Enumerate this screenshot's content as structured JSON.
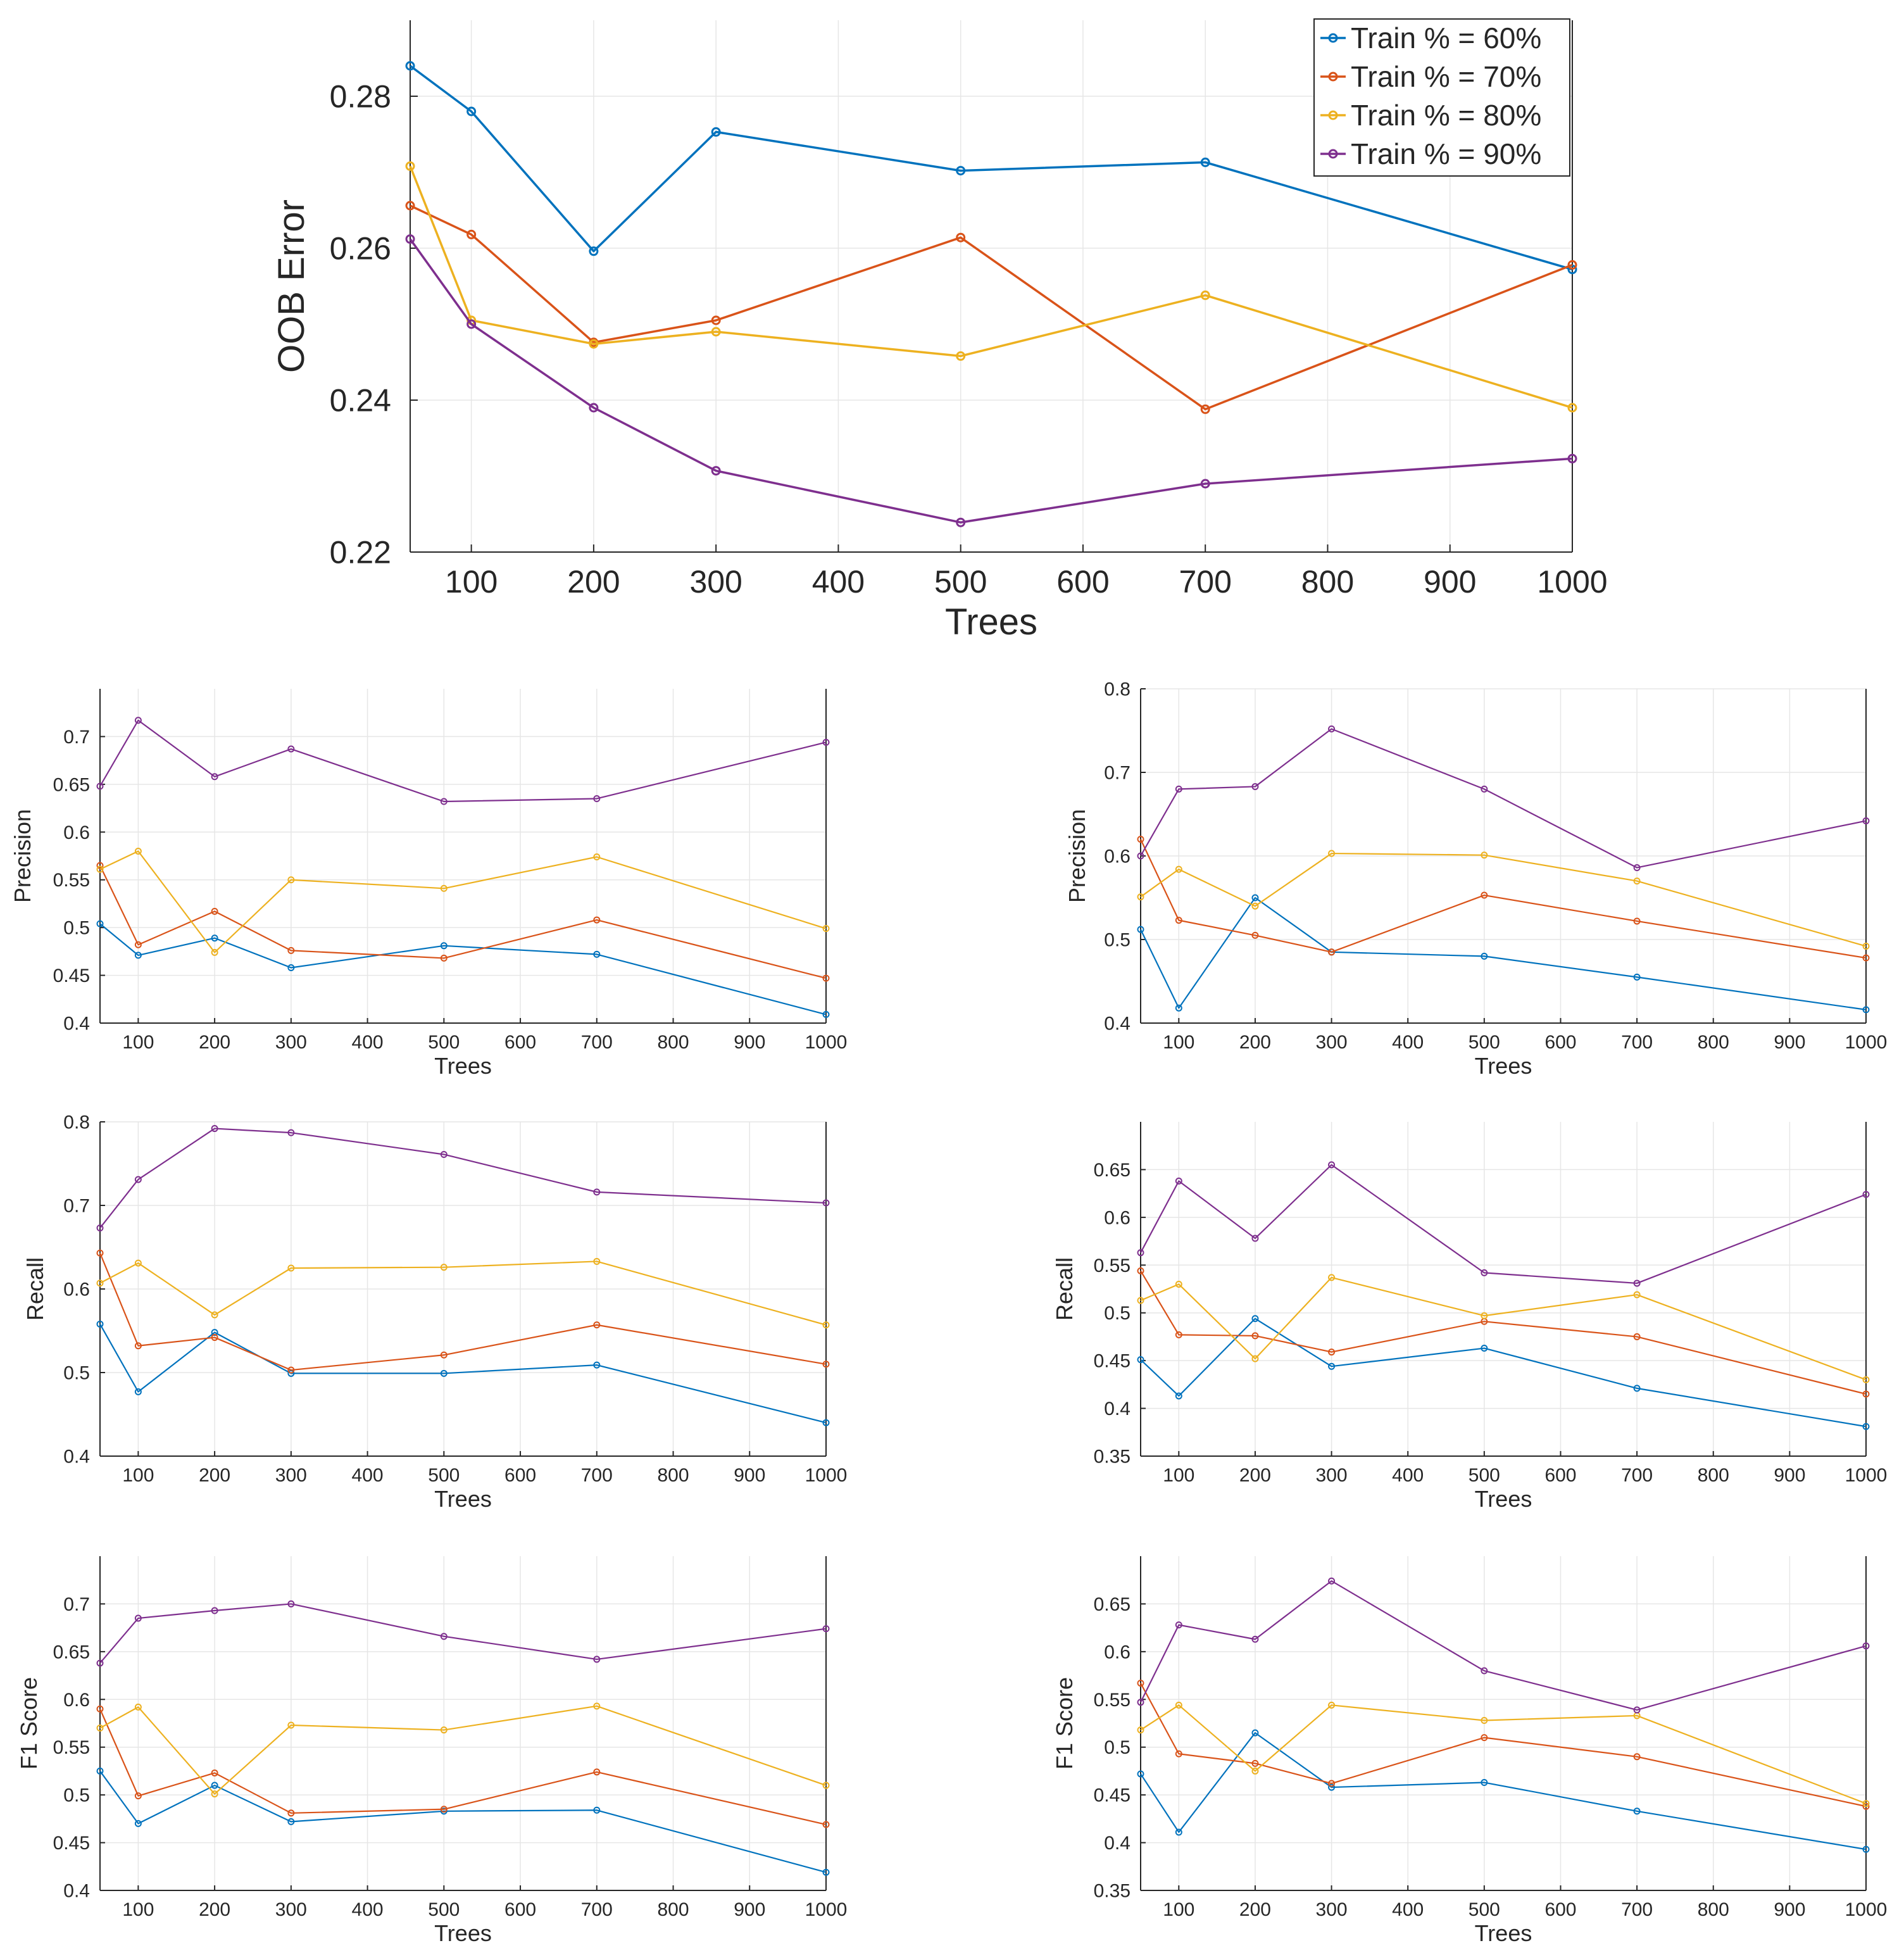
{
  "series_meta": [
    {
      "name": "Train % = 60%",
      "color": "#0072BD"
    },
    {
      "name": "Train % = 70%",
      "color": "#D95319"
    },
    {
      "name": "Train % = 80%",
      "color": "#EDB120"
    },
    {
      "name": "Train % = 90%",
      "color": "#7E2F8E"
    }
  ],
  "chart_data": [
    {
      "id": "oob",
      "type": "line",
      "title": "",
      "xlabel": "Trees",
      "ylabel": "OOB Error",
      "x": [
        50,
        100,
        200,
        300,
        500,
        700,
        1000
      ],
      "xlim": [
        50,
        1000
      ],
      "ylim": [
        0.22,
        0.29
      ],
      "xticks": [
        100,
        200,
        300,
        400,
        500,
        600,
        700,
        800,
        900,
        1000
      ],
      "yticks": [
        0.22,
        0.24,
        0.26,
        0.28
      ],
      "ytick_labels": [
        "0.22",
        "0.24",
        "0.26",
        "0.28"
      ],
      "grid": true,
      "legend": "top-right",
      "series": [
        {
          "name": "Train % = 60%",
          "values": [
            0.284,
            0.278,
            0.2596,
            0.2753,
            0.2702,
            0.2713,
            0.2572
          ]
        },
        {
          "name": "Train % = 70%",
          "values": [
            0.2656,
            0.2618,
            0.2476,
            0.2505,
            0.2614,
            0.2388,
            0.2578
          ]
        },
        {
          "name": "Train % = 80%",
          "values": [
            0.2708,
            0.2505,
            0.2474,
            0.249,
            0.2458,
            0.2538,
            0.239
          ]
        },
        {
          "name": "Train % = 90%",
          "values": [
            0.2612,
            0.25,
            0.239,
            0.2307,
            0.2239,
            0.229,
            0.2323
          ]
        }
      ]
    },
    {
      "id": "precision-left",
      "type": "line",
      "xlabel": "Trees",
      "ylabel": "Precision",
      "x": [
        50,
        100,
        200,
        300,
        500,
        700,
        1000
      ],
      "xlim": [
        50,
        1000
      ],
      "ylim": [
        0.4,
        0.75
      ],
      "xticks": [
        100,
        200,
        300,
        400,
        500,
        600,
        700,
        800,
        900,
        1000
      ],
      "yticks": [
        0.4,
        0.45,
        0.5,
        0.55,
        0.6,
        0.65,
        0.7
      ],
      "ytick_labels": [
        "0.4",
        "0.45",
        "0.5",
        "0.55",
        "0.6",
        "0.65",
        "0.7"
      ],
      "grid": true,
      "series": [
        {
          "name": "Train % = 60%",
          "values": [
            0.504,
            0.471,
            0.489,
            0.458,
            0.481,
            0.472,
            0.409
          ]
        },
        {
          "name": "Train % = 70%",
          "values": [
            0.565,
            0.482,
            0.517,
            0.476,
            0.468,
            0.508,
            0.447
          ]
        },
        {
          "name": "Train % = 80%",
          "values": [
            0.561,
            0.58,
            0.474,
            0.55,
            0.541,
            0.574,
            0.499
          ]
        },
        {
          "name": "Train % = 90%",
          "values": [
            0.648,
            0.717,
            0.658,
            0.687,
            0.632,
            0.635,
            0.694
          ]
        }
      ]
    },
    {
      "id": "precision-right",
      "type": "line",
      "xlabel": "Trees",
      "ylabel": "Precision",
      "x": [
        50,
        100,
        200,
        300,
        500,
        700,
        1000
      ],
      "xlim": [
        50,
        1000
      ],
      "ylim": [
        0.4,
        0.8
      ],
      "xticks": [
        100,
        200,
        300,
        400,
        500,
        600,
        700,
        800,
        900,
        1000
      ],
      "yticks": [
        0.4,
        0.5,
        0.6,
        0.7,
        0.8
      ],
      "ytick_labels": [
        "0.4",
        "0.5",
        "0.6",
        "0.7",
        "0.8"
      ],
      "grid": true,
      "series": [
        {
          "name": "Train % = 60%",
          "values": [
            0.512,
            0.418,
            0.55,
            0.485,
            0.48,
            0.455,
            0.416
          ]
        },
        {
          "name": "Train % = 70%",
          "values": [
            0.62,
            0.523,
            0.505,
            0.485,
            0.553,
            0.522,
            0.478
          ]
        },
        {
          "name": "Train % = 80%",
          "values": [
            0.551,
            0.584,
            0.54,
            0.603,
            0.601,
            0.57,
            0.492
          ]
        },
        {
          "name": "Train % = 90%",
          "values": [
            0.6,
            0.68,
            0.683,
            0.752,
            0.68,
            0.586,
            0.642
          ]
        }
      ]
    },
    {
      "id": "recall-left",
      "type": "line",
      "xlabel": "Trees",
      "ylabel": "Recall",
      "x": [
        50,
        100,
        200,
        300,
        500,
        700,
        1000
      ],
      "xlim": [
        50,
        1000
      ],
      "ylim": [
        0.4,
        0.8
      ],
      "xticks": [
        100,
        200,
        300,
        400,
        500,
        600,
        700,
        800,
        900,
        1000
      ],
      "yticks": [
        0.4,
        0.5,
        0.6,
        0.7,
        0.8
      ],
      "ytick_labels": [
        "0.4",
        "0.5",
        "0.6",
        "0.7",
        "0.8"
      ],
      "grid": true,
      "series": [
        {
          "name": "Train % = 60%",
          "values": [
            0.558,
            0.477,
            0.548,
            0.499,
            0.499,
            0.509,
            0.44
          ]
        },
        {
          "name": "Train % = 70%",
          "values": [
            0.643,
            0.532,
            0.542,
            0.503,
            0.521,
            0.557,
            0.51
          ]
        },
        {
          "name": "Train % = 80%",
          "values": [
            0.607,
            0.631,
            0.569,
            0.625,
            0.626,
            0.633,
            0.557
          ]
        },
        {
          "name": "Train % = 90%",
          "values": [
            0.673,
            0.731,
            0.792,
            0.787,
            0.761,
            0.716,
            0.703
          ]
        }
      ]
    },
    {
      "id": "recall-right",
      "type": "line",
      "xlabel": "Trees",
      "ylabel": "Recall",
      "x": [
        50,
        100,
        200,
        300,
        500,
        700,
        1000
      ],
      "xlim": [
        50,
        1000
      ],
      "ylim": [
        0.35,
        0.7
      ],
      "xticks": [
        100,
        200,
        300,
        400,
        500,
        600,
        700,
        800,
        900,
        1000
      ],
      "yticks": [
        0.35,
        0.4,
        0.45,
        0.5,
        0.55,
        0.6,
        0.65
      ],
      "ytick_labels": [
        "0.35",
        "0.4",
        "0.45",
        "0.5",
        "0.55",
        "0.6",
        "0.65"
      ],
      "grid": true,
      "series": [
        {
          "name": "Train % = 60%",
          "values": [
            0.451,
            0.413,
            0.494,
            0.444,
            0.463,
            0.421,
            0.381
          ]
        },
        {
          "name": "Train % = 70%",
          "values": [
            0.544,
            0.477,
            0.476,
            0.459,
            0.491,
            0.475,
            0.415
          ]
        },
        {
          "name": "Train % = 80%",
          "values": [
            0.513,
            0.53,
            0.452,
            0.537,
            0.497,
            0.519,
            0.43
          ]
        },
        {
          "name": "Train % = 90%",
          "values": [
            0.563,
            0.638,
            0.578,
            0.655,
            0.542,
            0.531,
            0.624
          ]
        }
      ]
    },
    {
      "id": "f1-left",
      "type": "line",
      "xlabel": "Trees",
      "ylabel": "F1 Score",
      "x": [
        50,
        100,
        200,
        300,
        500,
        700,
        1000
      ],
      "xlim": [
        50,
        1000
      ],
      "ylim": [
        0.4,
        0.75
      ],
      "xticks": [
        100,
        200,
        300,
        400,
        500,
        600,
        700,
        800,
        900,
        1000
      ],
      "yticks": [
        0.4,
        0.45,
        0.5,
        0.55,
        0.6,
        0.65,
        0.7
      ],
      "ytick_labels": [
        "0.4",
        "0.45",
        "0.5",
        "0.55",
        "0.6",
        "0.65",
        "0.7"
      ],
      "grid": true,
      "series": [
        {
          "name": "Train % = 60%",
          "values": [
            0.525,
            0.47,
            0.51,
            0.472,
            0.483,
            0.484,
            0.419
          ]
        },
        {
          "name": "Train % = 70%",
          "values": [
            0.59,
            0.499,
            0.523,
            0.481,
            0.485,
            0.524,
            0.469
          ]
        },
        {
          "name": "Train % = 80%",
          "values": [
            0.57,
            0.592,
            0.501,
            0.573,
            0.568,
            0.593,
            0.51
          ]
        },
        {
          "name": "Train % = 90%",
          "values": [
            0.638,
            0.685,
            0.693,
            0.7,
            0.666,
            0.642,
            0.674
          ]
        }
      ]
    },
    {
      "id": "f1-right",
      "type": "line",
      "xlabel": "Trees",
      "ylabel": "F1 Score",
      "x": [
        50,
        100,
        200,
        300,
        500,
        700,
        1000
      ],
      "xlim": [
        50,
        1000
      ],
      "ylim": [
        0.35,
        0.7
      ],
      "xticks": [
        100,
        200,
        300,
        400,
        500,
        600,
        700,
        800,
        900,
        1000
      ],
      "yticks": [
        0.35,
        0.4,
        0.45,
        0.5,
        0.55,
        0.6,
        0.65
      ],
      "ytick_labels": [
        "0.35",
        "0.4",
        "0.45",
        "0.5",
        "0.55",
        "0.6",
        "0.65"
      ],
      "grid": true,
      "series": [
        {
          "name": "Train % = 60%",
          "values": [
            0.472,
            0.411,
            0.515,
            0.458,
            0.463,
            0.433,
            0.393
          ]
        },
        {
          "name": "Train % = 70%",
          "values": [
            0.567,
            0.493,
            0.483,
            0.462,
            0.51,
            0.49,
            0.438
          ]
        },
        {
          "name": "Train % = 80%",
          "values": [
            0.518,
            0.544,
            0.475,
            0.544,
            0.528,
            0.533,
            0.441
          ]
        },
        {
          "name": "Train % = 90%",
          "values": [
            0.547,
            0.628,
            0.613,
            0.674,
            0.58,
            0.539,
            0.606
          ]
        }
      ]
    }
  ]
}
